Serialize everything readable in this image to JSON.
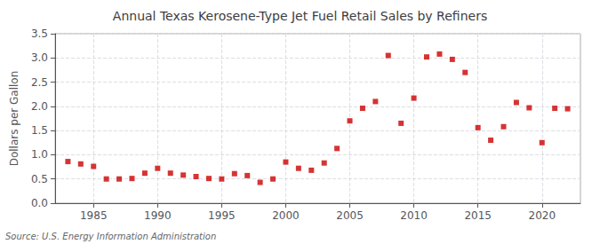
{
  "chart_data": {
    "type": "scatter",
    "title": "Annual Texas Kerosene-Type Jet Fuel Retail Sales by Refiners",
    "ylabel": "Dollars per Gallon",
    "annotations": [
      "Source: U.S. Energy Information Administration"
    ],
    "x": [
      1983,
      1984,
      1985,
      1986,
      1987,
      1988,
      1989,
      1990,
      1991,
      1992,
      1993,
      1994,
      1995,
      1996,
      1997,
      1998,
      1999,
      2000,
      2001,
      2002,
      2003,
      2004,
      2005,
      2006,
      2007,
      2008,
      2009,
      2010,
      2011,
      2012,
      2013,
      2014,
      2015,
      2016,
      2017,
      2018,
      2019,
      2020,
      2021,
      2022
    ],
    "values": [
      0.86,
      0.81,
      0.76,
      0.5,
      0.5,
      0.51,
      0.62,
      0.72,
      0.62,
      0.58,
      0.55,
      0.51,
      0.5,
      0.61,
      0.57,
      0.43,
      0.5,
      0.85,
      0.72,
      0.68,
      0.83,
      1.13,
      1.7,
      1.96,
      2.1,
      3.05,
      1.65,
      2.17,
      3.02,
      3.08,
      2.97,
      2.7,
      1.56,
      1.3,
      1.58,
      2.08,
      1.97,
      1.25,
      1.96,
      1.95
    ],
    "color": "#cc0000",
    "marker": "square",
    "xlim": [
      1982,
      2023
    ],
    "xticks": [
      1985,
      1990,
      1995,
      2000,
      2005,
      2010,
      2015,
      2020
    ],
    "ylim": [
      0.0,
      3.5
    ],
    "yticks": [
      {
        "value": 0,
        "label": "0.0"
      },
      0.5,
      {
        "value": 1,
        "label": "1.0"
      },
      1.5,
      {
        "value": 2,
        "label": "2.0"
      },
      2.5,
      {
        "value": 3,
        "label": "3.0"
      },
      3.5
    ],
    "grid": true
  }
}
